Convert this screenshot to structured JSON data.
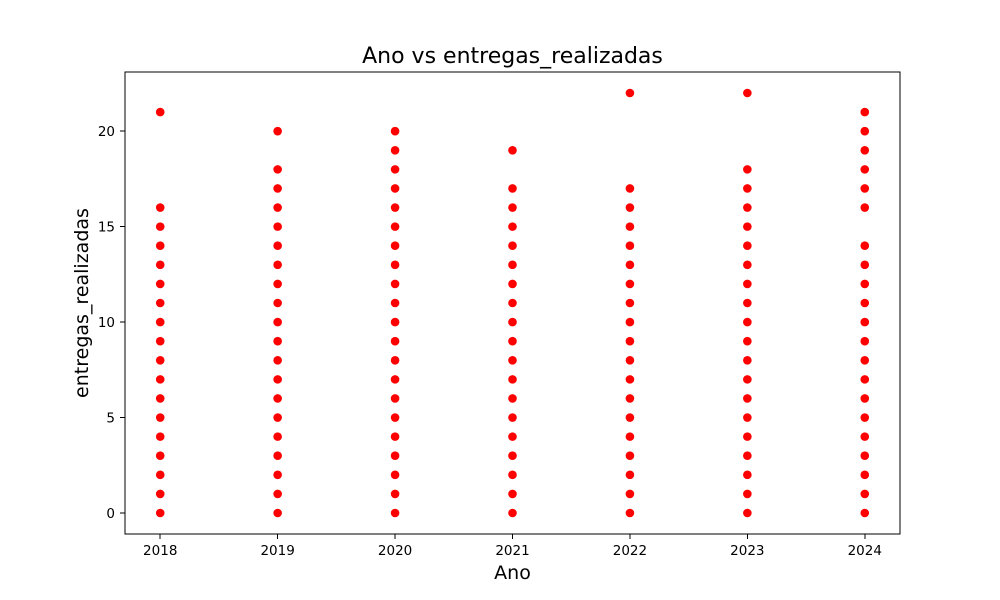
{
  "chart_data": {
    "type": "scatter",
    "title": "Ano vs entregas_realizadas",
    "xlabel": "Ano",
    "ylabel": "entregas_realizadas",
    "xlim": [
      2017.7,
      2024.3
    ],
    "ylim": [
      -1.1,
      23.1
    ],
    "xticks": [
      "2018",
      "2019",
      "2020",
      "2021",
      "2022",
      "2023",
      "2024"
    ],
    "yticks": [
      "0",
      "5",
      "10",
      "15",
      "20"
    ],
    "grid": false,
    "series": [
      {
        "color": "#ff0000",
        "x": [
          2018,
          2018,
          2018,
          2018,
          2018,
          2018,
          2018,
          2018,
          2018,
          2018,
          2018,
          2018,
          2018,
          2018,
          2018,
          2018,
          2018,
          2018,
          2019,
          2019,
          2019,
          2019,
          2019,
          2019,
          2019,
          2019,
          2019,
          2019,
          2019,
          2019,
          2019,
          2019,
          2019,
          2019,
          2019,
          2019,
          2019,
          2019,
          2020,
          2020,
          2020,
          2020,
          2020,
          2020,
          2020,
          2020,
          2020,
          2020,
          2020,
          2020,
          2020,
          2020,
          2020,
          2020,
          2020,
          2020,
          2020,
          2020,
          2020,
          2021,
          2021,
          2021,
          2021,
          2021,
          2021,
          2021,
          2021,
          2021,
          2021,
          2021,
          2021,
          2021,
          2021,
          2021,
          2021,
          2021,
          2021,
          2021,
          2022,
          2022,
          2022,
          2022,
          2022,
          2022,
          2022,
          2022,
          2022,
          2022,
          2022,
          2022,
          2022,
          2022,
          2022,
          2022,
          2022,
          2022,
          2022,
          2023,
          2023,
          2023,
          2023,
          2023,
          2023,
          2023,
          2023,
          2023,
          2023,
          2023,
          2023,
          2023,
          2023,
          2023,
          2023,
          2023,
          2023,
          2023,
          2023,
          2024,
          2024,
          2024,
          2024,
          2024,
          2024,
          2024,
          2024,
          2024,
          2024,
          2024,
          2024,
          2024,
          2024,
          2024,
          2024,
          2024,
          2024,
          2024,
          2024,
          2024
        ],
        "y": [
          0,
          1,
          2,
          3,
          4,
          5,
          6,
          7,
          8,
          9,
          10,
          11,
          12,
          13,
          14,
          15,
          16,
          21,
          0,
          1,
          2,
          3,
          4,
          5,
          6,
          7,
          8,
          9,
          10,
          11,
          12,
          13,
          14,
          15,
          16,
          17,
          18,
          20,
          0,
          1,
          2,
          3,
          4,
          5,
          6,
          7,
          8,
          9,
          10,
          11,
          12,
          13,
          14,
          15,
          16,
          17,
          18,
          19,
          20,
          0,
          1,
          2,
          3,
          4,
          5,
          6,
          7,
          8,
          9,
          10,
          11,
          12,
          13,
          14,
          15,
          16,
          17,
          19,
          0,
          1,
          2,
          3,
          4,
          5,
          6,
          7,
          8,
          9,
          10,
          11,
          12,
          13,
          14,
          15,
          16,
          17,
          22,
          0,
          1,
          2,
          3,
          4,
          5,
          6,
          7,
          8,
          9,
          10,
          11,
          12,
          13,
          14,
          15,
          16,
          17,
          18,
          22,
          0,
          1,
          2,
          3,
          4,
          5,
          6,
          7,
          8,
          9,
          10,
          11,
          12,
          13,
          14,
          16,
          17,
          18,
          19,
          20,
          21
        ]
      }
    ]
  }
}
